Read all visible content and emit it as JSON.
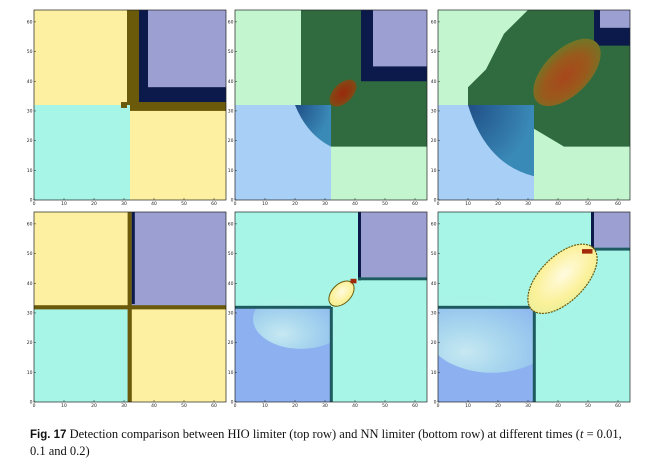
{
  "figure": {
    "label": "Fig. 17",
    "caption_pre": "Detection comparison between HIO limiter (top row) and NN limiter (bottom row) at different times (",
    "caption_t": "t",
    "caption_post": " = 0.01, 0.1 and  0.2)",
    "axis_ticks": [
      "0",
      "10",
      "20",
      "30",
      "40",
      "50",
      "60"
    ],
    "colors": {
      "yellow": "#fdf0a0",
      "cyan": "#a6f5e6",
      "lavender": "#9b9fd2",
      "navy": "#0b1a4a",
      "olive": "#6b5a0a",
      "green_light": "#c3f6cf",
      "blue_light": "#a8d0f6",
      "green_dark": "#2f6b3e",
      "blue_mid": "#8cb0f0",
      "teal_line": "#1d5b60",
      "mark_red": "#a02a0a",
      "mark_yellow": "#fff3a8"
    }
  },
  "chart_data": [
    {
      "type": "heatmap",
      "row": "HIO limiter (top row)",
      "time": "0.01",
      "xlim": [
        0,
        64
      ],
      "ylim": [
        0,
        64
      ]
    },
    {
      "type": "heatmap",
      "row": "HIO limiter (top row)",
      "time": "0.1",
      "xlim": [
        0,
        64
      ],
      "ylim": [
        0,
        64
      ]
    },
    {
      "type": "heatmap",
      "row": "HIO limiter (top row)",
      "time": "0.2",
      "xlim": [
        0,
        64
      ],
      "ylim": [
        0,
        64
      ]
    },
    {
      "type": "heatmap",
      "row": "NN limiter (bottom row)",
      "time": "0.01",
      "xlim": [
        0,
        64
      ],
      "ylim": [
        0,
        64
      ]
    },
    {
      "type": "heatmap",
      "row": "NN limiter (bottom row)",
      "time": "0.1",
      "xlim": [
        0,
        64
      ],
      "ylim": [
        0,
        64
      ]
    },
    {
      "type": "heatmap",
      "row": "NN limiter (bottom row)",
      "time": "0.2",
      "xlim": [
        0,
        64
      ],
      "ylim": [
        0,
        64
      ]
    }
  ]
}
